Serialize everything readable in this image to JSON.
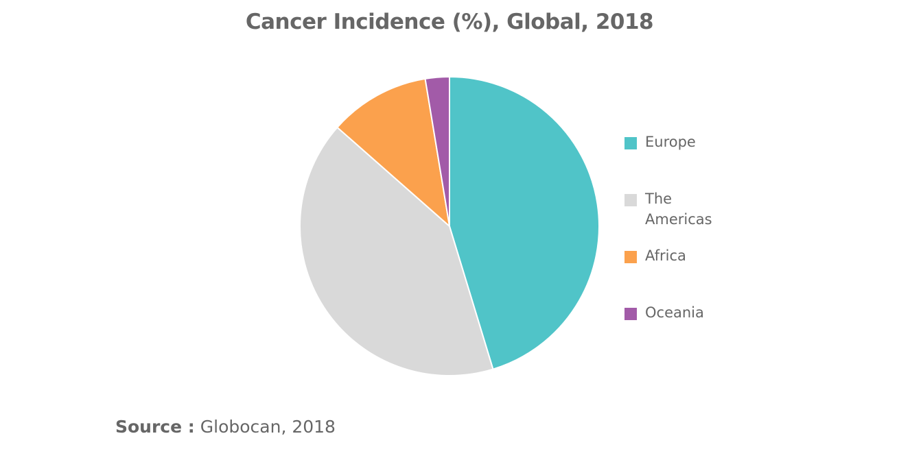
{
  "chart_data": {
    "type": "pie",
    "title": "Cancer Incidence (%), Global, 2018",
    "categories": [
      "Europe",
      "The Americas",
      "Africa",
      "Oceania"
    ],
    "values": [
      45.3,
      41.2,
      10.9,
      2.6
    ],
    "colors": [
      "#50c4c8",
      "#d9d9d9",
      "#fba14d",
      "#a25ba8"
    ],
    "legend": "right",
    "start_angle_deg": 0,
    "direction": "clockwise"
  },
  "source": {
    "label": "Source :",
    "text": "Globocan, 2018"
  }
}
